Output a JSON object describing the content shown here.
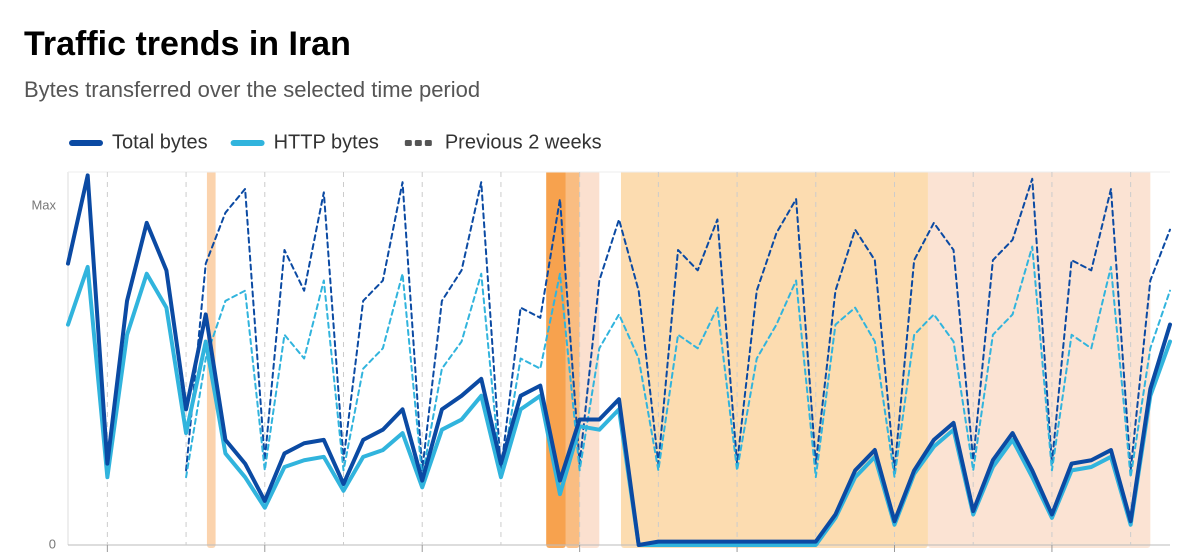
{
  "chart_data": {
    "type": "line",
    "title": "Traffic trends in Iran",
    "subtitle": "Bytes transferred over the selected time period",
    "xlim": [
      0,
      56
    ],
    "xticks": [
      2,
      6,
      10,
      14,
      18,
      22,
      26,
      30,
      34,
      38,
      42,
      46,
      50,
      54
    ],
    "ylim": [
      0,
      1.1
    ],
    "yticks": [
      0,
      {
        "value": 1,
        "label": "Max"
      }
    ],
    "grid": true,
    "previous_name": "Previous 2 weeks",
    "highlights": [
      {
        "start": 7.06,
        "end": 7.5,
        "color": "#fbd3ad"
      },
      {
        "start": 24.3,
        "end": 25.3,
        "color": "#f7a24e"
      },
      {
        "start": 25.3,
        "end": 26.0,
        "color": "#f9bd82"
      },
      {
        "start": 26.0,
        "end": 27.0,
        "color": "#fbe0cf"
      },
      {
        "start": 28.1,
        "end": 43.7,
        "color": "#fcdcb0"
      },
      {
        "start": 43.7,
        "end": 55.0,
        "color": "#fbe3d3"
      }
    ],
    "series": [
      {
        "name": "Total bytes",
        "color": "#0b4aa3",
        "values": [
          0.83,
          1.09,
          0.24,
          0.72,
          0.95,
          0.81,
          0.4,
          0.68,
          0.31,
          0.24,
          0.13,
          0.27,
          0.3,
          0.31,
          0.18,
          0.31,
          0.34,
          0.4,
          0.19,
          0.4,
          0.44,
          0.49,
          0.24,
          0.44,
          0.47,
          0.19,
          0.37,
          0.37,
          0.43,
          0.0,
          0.01,
          0.01,
          0.01,
          0.01,
          0.01,
          0.01,
          0.01,
          0.01,
          0.01,
          0.09,
          0.22,
          0.28,
          0.07,
          0.22,
          0.31,
          0.36,
          0.1,
          0.25,
          0.33,
          0.22,
          0.09,
          0.24,
          0.25,
          0.28,
          0.07,
          0.46,
          0.65
        ],
        "previous_values": [
          null,
          null,
          null,
          null,
          null,
          null,
          0.22,
          0.83,
          0.98,
          1.05,
          0.25,
          0.87,
          0.75,
          1.04,
          0.25,
          0.72,
          0.78,
          1.07,
          0.22,
          0.72,
          0.81,
          1.07,
          0.22,
          0.7,
          0.67,
          1.02,
          0.24,
          0.78,
          0.96,
          0.75,
          0.24,
          0.87,
          0.81,
          0.96,
          0.24,
          0.75,
          0.92,
          1.02,
          0.24,
          0.75,
          0.93,
          0.84,
          0.22,
          0.84,
          0.95,
          0.87,
          0.25,
          0.84,
          0.9,
          1.08,
          0.24,
          0.84,
          0.81,
          1.05,
          0.22,
          0.78,
          0.93
        ]
      },
      {
        "name": "HTTP bytes",
        "color": "#31b4dd",
        "values": [
          0.65,
          0.82,
          0.2,
          0.62,
          0.8,
          0.7,
          0.33,
          0.6,
          0.27,
          0.2,
          0.11,
          0.23,
          0.25,
          0.26,
          0.16,
          0.26,
          0.28,
          0.33,
          0.17,
          0.34,
          0.37,
          0.44,
          0.2,
          0.4,
          0.44,
          0.15,
          0.35,
          0.34,
          0.4,
          0.0,
          0.0,
          0.0,
          0.0,
          0.0,
          0.0,
          0.0,
          0.0,
          0.0,
          0.0,
          0.08,
          0.2,
          0.26,
          0.06,
          0.21,
          0.29,
          0.34,
          0.09,
          0.23,
          0.31,
          0.2,
          0.08,
          0.22,
          0.23,
          0.26,
          0.06,
          0.44,
          0.6
        ],
        "previous_values": [
          null,
          null,
          null,
          null,
          null,
          null,
          0.2,
          0.55,
          0.72,
          0.75,
          0.22,
          0.62,
          0.55,
          0.78,
          0.22,
          0.52,
          0.58,
          0.8,
          0.2,
          0.52,
          0.6,
          0.8,
          0.2,
          0.55,
          0.52,
          0.8,
          0.22,
          0.58,
          0.68,
          0.55,
          0.22,
          0.62,
          0.58,
          0.7,
          0.22,
          0.55,
          0.65,
          0.78,
          0.2,
          0.65,
          0.7,
          0.6,
          0.2,
          0.62,
          0.68,
          0.6,
          0.22,
          0.62,
          0.68,
          0.88,
          0.22,
          0.62,
          0.58,
          0.82,
          0.2,
          0.58,
          0.75
        ]
      }
    ]
  }
}
